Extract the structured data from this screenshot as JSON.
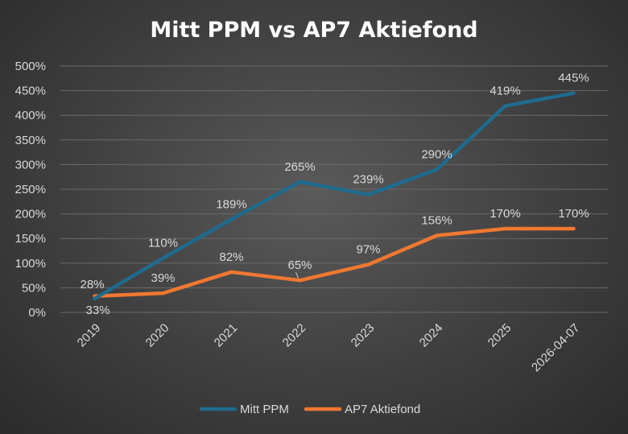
{
  "chart_data": {
    "type": "line",
    "title": "Mitt PPM vs AP7 Aktiefond",
    "categories": [
      "2019",
      "2020",
      "2021",
      "2022",
      "2023",
      "2024",
      "2025",
      "2026-04-07"
    ],
    "ylim": [
      0,
      500
    ],
    "yticks": [
      "0%",
      "50%",
      "100%",
      "150%",
      "200%",
      "250%",
      "300%",
      "350%",
      "400%",
      "450%",
      "500%"
    ],
    "grid": true,
    "legend_position": "bottom",
    "series": [
      {
        "name": "Mitt PPM",
        "color": "#1f6b8f",
        "values": [
          28,
          110,
          189,
          265,
          239,
          290,
          419,
          445
        ],
        "labels": [
          "28%",
          "110%",
          "189%",
          "265%",
          "239%",
          "290%",
          "419%",
          "445%"
        ]
      },
      {
        "name": "AP7 Aktiefond",
        "color": "#f07830",
        "values": [
          33,
          39,
          82,
          65,
          97,
          156,
          170,
          170
        ],
        "labels": [
          "33%",
          "39%",
          "82%",
          "65%",
          "97%",
          "156%",
          "170%",
          "170%"
        ]
      }
    ]
  }
}
